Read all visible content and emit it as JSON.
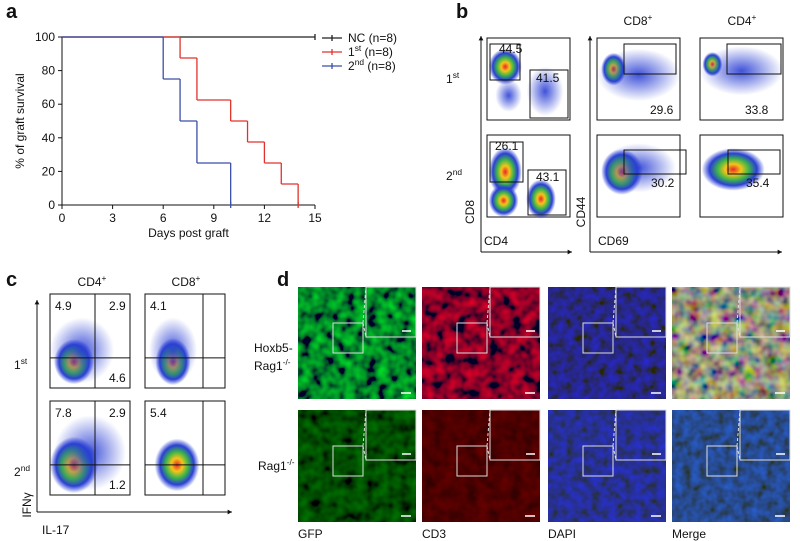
{
  "panel_labels": [
    "a",
    "b",
    "c",
    "d"
  ],
  "chart_data": {
    "type": "step",
    "ylabel": "% of graft survival",
    "xlabel": "Days post graft",
    "xlim": [
      0,
      15
    ],
    "ylim": [
      0,
      100
    ],
    "xticks": [
      0,
      3,
      6,
      9,
      12,
      15
    ],
    "yticks": [
      0,
      20,
      40,
      60,
      80,
      100
    ],
    "legend": "upper right",
    "series": [
      {
        "name": {
          "text": "NC (n=8)"
        },
        "color": "#222222",
        "x": [
          0,
          15
        ],
        "values": [
          100,
          100
        ]
      },
      {
        "name": {
          "text": "1",
          "sup": "st",
          "after": " (n=8)"
        },
        "color": "#e0322c",
        "x": [
          0,
          7,
          8,
          10,
          11,
          12,
          13,
          14
        ],
        "values": [
          100,
          87.5,
          62.5,
          50,
          37.5,
          25,
          12.5,
          0
        ]
      },
      {
        "name": {
          "text": "2",
          "sup": "nd",
          "after": " (n=8)"
        },
        "color": "#3a4fa6",
        "x": [
          0,
          6,
          7,
          8,
          10
        ],
        "values": [
          100,
          75,
          50,
          25,
          0
        ]
      }
    ]
  },
  "panel_b": {
    "columns": [
      {
        "text": "CD8",
        "sup": "+"
      },
      {
        "text": "CD4",
        "sup": "+"
      }
    ],
    "rows": [
      {
        "text": "1",
        "sup": "st"
      },
      {
        "text": "2",
        "sup": "nd"
      }
    ],
    "axes": {
      "left_y": "CD8",
      "left_x": "CD4",
      "right_y": "CD44",
      "right_x": "CD69"
    },
    "gates": [
      [
        "44.5",
        "41.5",
        "29.6",
        "33.8"
      ],
      [
        "26.1",
        "43.1",
        "30.2",
        "35.4"
      ]
    ]
  },
  "panel_c": {
    "columns": [
      {
        "text": "CD4",
        "sup": "+"
      },
      {
        "text": "CD8",
        "sup": "+"
      }
    ],
    "rows": [
      {
        "text": "1",
        "sup": "st"
      },
      {
        "text": "2",
        "sup": "nd"
      }
    ],
    "axes": {
      "y": "IFNγ",
      "x": "IL-17"
    },
    "quadrants": [
      {
        "cd4": [
          "4.9",
          "2.9",
          "4.6"
        ],
        "cd8": [
          "4.1"
        ]
      },
      {
        "cd4": [
          "7.8",
          "2.9",
          "1.2"
        ],
        "cd8": [
          "5.4"
        ]
      }
    ]
  },
  "panel_d": {
    "rows": [
      [
        {
          "text": "Hoxb5-"
        },
        {
          "text": "Rag1",
          "sup": "-/-"
        }
      ],
      [
        {
          "text": "Rag1",
          "sup": "-/-"
        }
      ]
    ],
    "columns": [
      "GFP",
      "CD3",
      "DAPI",
      "Merge"
    ]
  }
}
